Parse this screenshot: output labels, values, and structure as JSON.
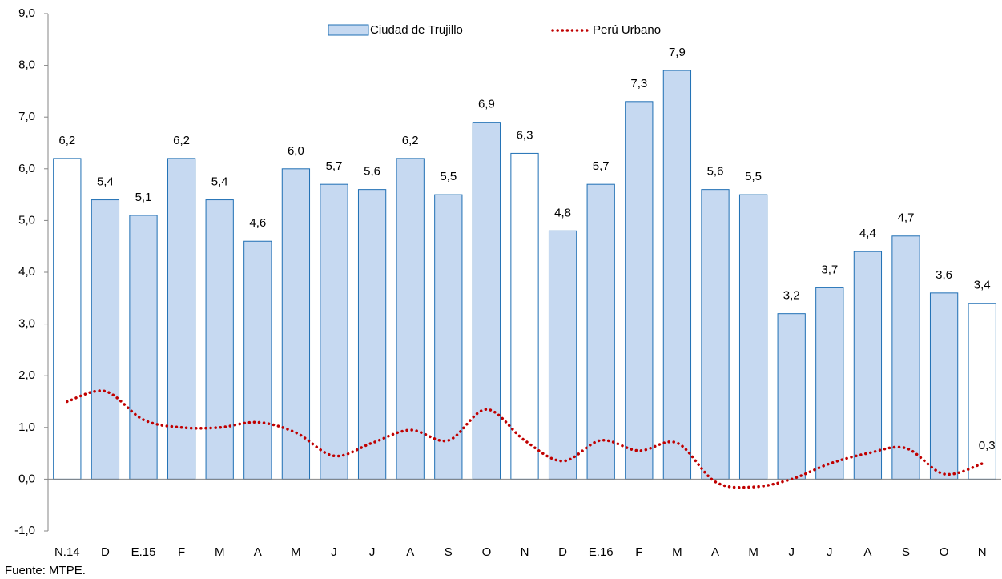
{
  "chart_data": {
    "type": "bar",
    "categories": [
      "N.14",
      "D",
      "E.15",
      "F",
      "M",
      "A",
      "M",
      "J",
      "J",
      "A",
      "S",
      "O",
      "N",
      "D",
      "E.16",
      "F",
      "M",
      "A",
      "M",
      "J",
      "J",
      "A",
      "S",
      "O",
      "N"
    ],
    "series": [
      {
        "name": "Ciudad de Trujillo",
        "type": "bar",
        "color": "#c6d9f1",
        "stroke": "#1f6fb4",
        "colors": [
          "#ffffff",
          "#c6d9f1",
          "#c6d9f1",
          "#c6d9f1",
          "#c6d9f1",
          "#c6d9f1",
          "#c6d9f1",
          "#c6d9f1",
          "#c6d9f1",
          "#c6d9f1",
          "#c6d9f1",
          "#c6d9f1",
          "#ffffff",
          "#c6d9f1",
          "#c6d9f1",
          "#c6d9f1",
          "#c6d9f1",
          "#c6d9f1",
          "#c6d9f1",
          "#c6d9f1",
          "#c6d9f1",
          "#c6d9f1",
          "#c6d9f1",
          "#c6d9f1",
          "#ffffff"
        ],
        "values": [
          6.2,
          5.4,
          5.1,
          6.2,
          5.4,
          4.6,
          6.0,
          5.7,
          5.6,
          6.2,
          5.5,
          6.9,
          6.3,
          4.8,
          5.7,
          7.3,
          7.9,
          5.6,
          5.5,
          3.2,
          3.7,
          4.4,
          4.7,
          3.6,
          3.4
        ],
        "value_labels": [
          "6,2",
          "5,4",
          "5,1",
          "6,2",
          "5,4",
          "4,6",
          "6,0",
          "5,7",
          "5,6",
          "6,2",
          "5,5",
          "6,9",
          "6,3",
          "4,8",
          "5,7",
          "7,3",
          "7,9",
          "5,6",
          "5,5",
          "3,2",
          "3,7",
          "4,4",
          "4,7",
          "3,6",
          "3,4"
        ]
      },
      {
        "name": "Perú Urbano",
        "type": "line",
        "color": "#c00000",
        "values": [
          1.5,
          1.7,
          1.15,
          1.0,
          1.0,
          1.1,
          0.9,
          0.45,
          0.7,
          0.95,
          0.75,
          1.35,
          0.75,
          0.35,
          0.75,
          0.55,
          0.7,
          -0.05,
          -0.15,
          0.0,
          0.3,
          0.5,
          0.6,
          0.1,
          0.3
        ],
        "value_labels": [
          null,
          null,
          null,
          null,
          null,
          null,
          null,
          null,
          null,
          null,
          null,
          null,
          null,
          null,
          null,
          null,
          null,
          null,
          null,
          null,
          null,
          null,
          null,
          null,
          "0,3"
        ]
      }
    ],
    "ylim": [
      -1,
      9
    ],
    "yticks": [
      {
        "value": -1,
        "label": "-1,0"
      },
      {
        "value": 0,
        "label": "0,0"
      },
      {
        "value": 1,
        "label": "1,0"
      },
      {
        "value": 2,
        "label": "2,0"
      },
      {
        "value": 3,
        "label": "3,0"
      },
      {
        "value": 4,
        "label": "4,0"
      },
      {
        "value": 5,
        "label": "5,0"
      },
      {
        "value": 6,
        "label": "6,0"
      },
      {
        "value": 7,
        "label": "7,0"
      },
      {
        "value": 8,
        "label": "8,0"
      },
      {
        "value": 9,
        "label": "9,0"
      }
    ],
    "grid": false,
    "legend": "top",
    "source": "Fuente: MTPE."
  }
}
